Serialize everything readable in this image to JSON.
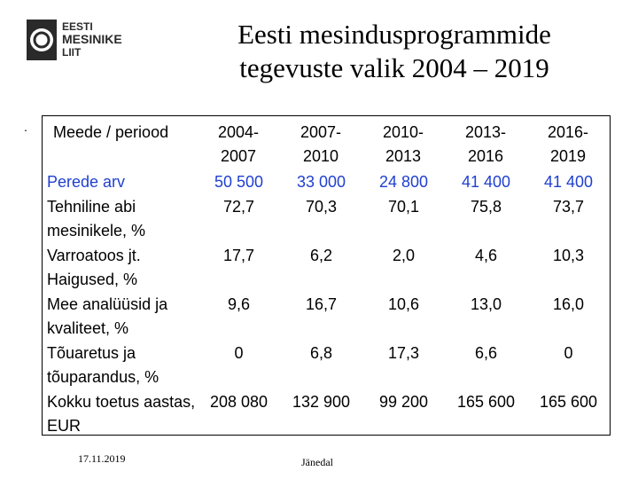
{
  "logo": {
    "lines": [
      "EESTI",
      "MESINIKE",
      "LIIT"
    ]
  },
  "title": {
    "line1": "Eesti mesindusprogrammide",
    "line2": "tegevuste valik 2004 – 2019"
  },
  "bullet": ".",
  "table": {
    "header": [
      "Meede / periood",
      "2004-2007",
      "2007-2010",
      "2010-2013",
      "2013-2016",
      "2016-2019"
    ],
    "rows": [
      [
        "Perede arv",
        "50 500",
        "33 000",
        "24 800",
        "41 400",
        "41 400"
      ],
      [
        "Tehniline abi mesinikele, %",
        "72,7",
        "70,3",
        "70,1",
        "75,8",
        "73,7"
      ],
      [
        "Varroatoos jt. Haigused, %",
        "17,7",
        "6,2",
        "2,0",
        "4,6",
        "10,3"
      ],
      [
        "Mee analüüsid ja kvaliteet, %",
        "9,6",
        "16,7",
        "10,6",
        "13,0",
        "16,0"
      ],
      [
        "Tõuaretus ja tõuparandus, %",
        "0",
        "6,8",
        "17,3",
        "6,6",
        "0"
      ],
      [
        "Kokku toetus aastas, EUR",
        "208 080",
        "132 900",
        "99 200",
        "165 600",
        "165 600"
      ]
    ],
    "highlight_row": 0,
    "highlight_color": "#1f3fd0"
  },
  "footer": {
    "date": "17.11.2019",
    "place": "Jänedal"
  }
}
